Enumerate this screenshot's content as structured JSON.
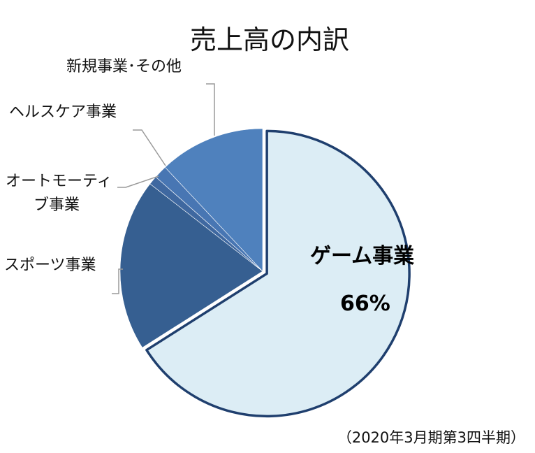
{
  "chart_data": {
    "type": "pie",
    "title": "売上高の内訳",
    "note": "（2020年3月期第3四半期）",
    "slices": [
      {
        "label": "ゲーム事業",
        "label_text": "ゲーム事業",
        "value": 66,
        "value_label": "66%",
        "color": "#dcedf5",
        "exploded": true
      },
      {
        "label": "スポーツ事業",
        "label_text": "スポーツ事業",
        "value": 19.5,
        "color": "#365f91"
      },
      {
        "label": "オートモーティブ事業",
        "label_line1": "オートモーティ",
        "label_line2": "ブ事業",
        "value": 1,
        "color": "#3f68a0"
      },
      {
        "label": "ヘルスケア事業",
        "label_text": "ヘルスケア事業",
        "value": 1.5,
        "color": "#4876b3"
      },
      {
        "label": "新規事業・その他",
        "label_text": "新規事業･その他",
        "value": 12,
        "color": "#4f81bd"
      }
    ]
  }
}
